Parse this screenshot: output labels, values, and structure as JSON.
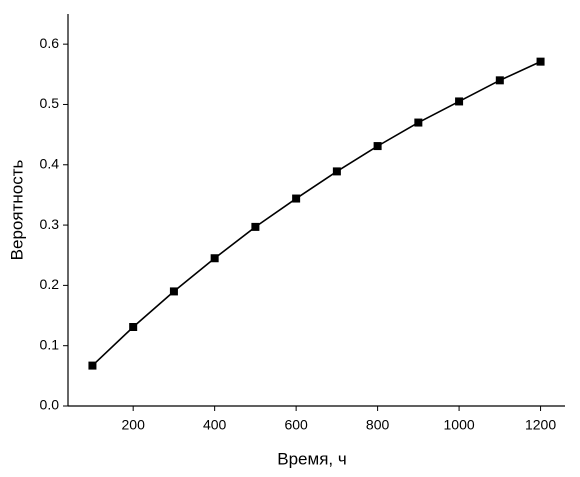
{
  "chart_data": {
    "type": "line",
    "x_label": "Время, ч",
    "y_label": "Вероятность",
    "x": [
      100,
      200,
      300,
      400,
      500,
      600,
      700,
      800,
      900,
      1000,
      1100,
      1200
    ],
    "series": [
      {
        "color": "#000000",
        "values": [
          0.067,
          0.131,
          0.19,
          0.245,
          0.297,
          0.344,
          0.389,
          0.431,
          0.47,
          0.505,
          0.54,
          0.571
        ]
      }
    ],
    "xlim": [
      40,
      1260
    ],
    "ylim": [
      0,
      0.65
    ],
    "xticks": [
      200,
      400,
      600,
      800,
      1000,
      1200
    ],
    "yticks": [
      {
        "value": 0,
        "label": "0.0"
      },
      0.1,
      0.2,
      0.3,
      0.4,
      0.5,
      0.6
    ]
  }
}
